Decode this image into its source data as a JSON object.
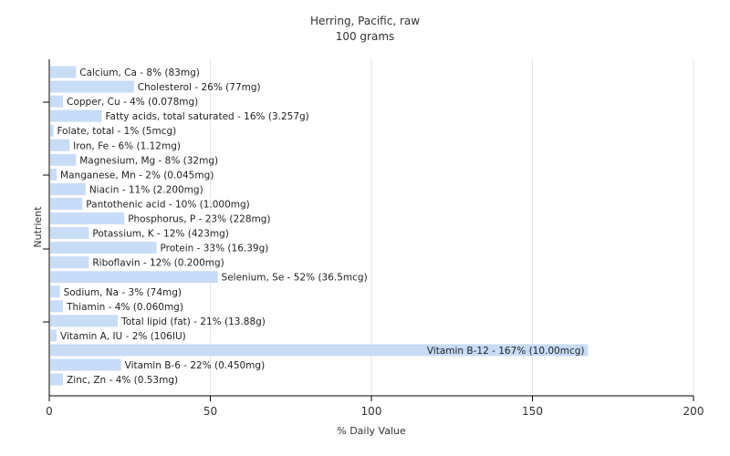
{
  "chart_data": {
    "type": "bar",
    "orientation": "horizontal",
    "title": "Herring, Pacific, raw",
    "subtitle": "100 grams",
    "xlabel": "% Daily Value",
    "ylabel": "Nutrient",
    "xlim": [
      0,
      200
    ],
    "xticks": [
      0,
      50,
      100,
      150,
      200
    ],
    "grid": true,
    "bar_color": "#c6dcf7",
    "categories": [
      "Calcium, Ca",
      "Cholesterol",
      "Copper, Cu",
      "Fatty acids, total saturated",
      "Folate, total",
      "Iron, Fe",
      "Magnesium, Mg",
      "Manganese, Mn",
      "Niacin",
      "Pantothenic acid",
      "Phosphorus, P",
      "Potassium, K",
      "Protein",
      "Riboflavin",
      "Selenium, Se",
      "Sodium, Na",
      "Thiamin",
      "Total lipid (fat)",
      "Vitamin A, IU",
      "Vitamin B-12",
      "Vitamin B-6",
      "Zinc, Zn"
    ],
    "values": [
      8,
      26,
      4,
      16,
      1,
      6,
      8,
      2,
      11,
      10,
      23,
      12,
      33,
      12,
      52,
      3,
      4,
      21,
      2,
      167,
      22,
      4
    ],
    "labels": [
      "Calcium, Ca - 8% (83mg)",
      "Cholesterol - 26% (77mg)",
      "Copper, Cu - 4% (0.078mg)",
      "Fatty acids, total saturated - 16% (3.257g)",
      "Folate, total - 1% (5mcg)",
      "Iron, Fe - 6% (1.12mg)",
      "Magnesium, Mg - 8% (32mg)",
      "Manganese, Mn - 2% (0.045mg)",
      "Niacin - 11% (2.200mg)",
      "Pantothenic acid - 10% (1.000mg)",
      "Phosphorus, P - 23% (228mg)",
      "Potassium, K - 12% (423mg)",
      "Protein - 33% (16.39g)",
      "Riboflavin - 12% (0.200mg)",
      "Selenium, Se - 52% (36.5mcg)",
      "Sodium, Na - 3% (74mg)",
      "Thiamin - 4% (0.060mg)",
      "Total lipid (fat) - 21% (13.88g)",
      "Vitamin A, IU - 2% (106IU)",
      "Vitamin B-12 - 167% (10.00mcg)",
      "Vitamin B-6 - 22% (0.450mg)",
      "Zinc, Zn - 4% (0.53mg)"
    ]
  }
}
